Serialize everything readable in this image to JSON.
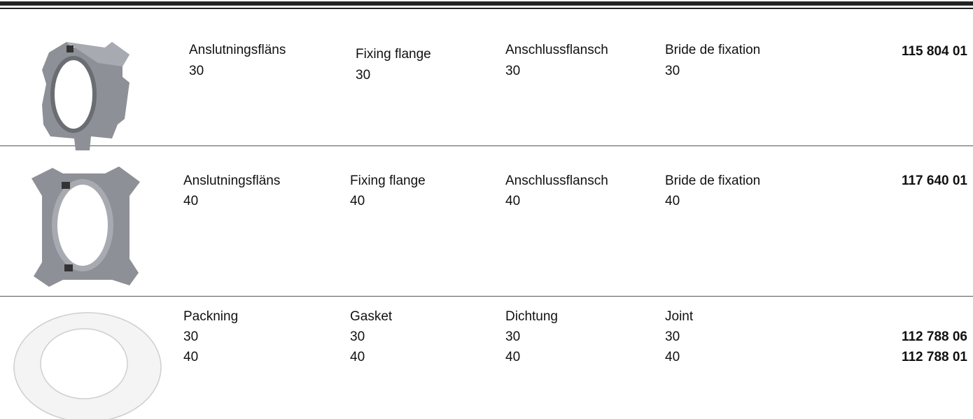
{
  "rows": [
    {
      "sv": "Anslutningsfläns",
      "en": "Fixing flange",
      "de": "Anschlussflansch",
      "fr": "Bride de fixation",
      "sizes": [
        "30"
      ],
      "articles": [
        "115 804 01"
      ]
    },
    {
      "sv": "Anslutningsfläns",
      "en": "Fixing flange",
      "de": "Anschlussflansch",
      "fr": "Bride de fixation",
      "sizes": [
        "40"
      ],
      "articles": [
        "117 640 01"
      ]
    },
    {
      "sv": "Packning",
      "en": "Gasket",
      "de": "Dichtung",
      "fr": "Joint",
      "sizes": [
        "30",
        "40"
      ],
      "articles": [
        "112 788 06",
        "112 788 01"
      ]
    }
  ]
}
